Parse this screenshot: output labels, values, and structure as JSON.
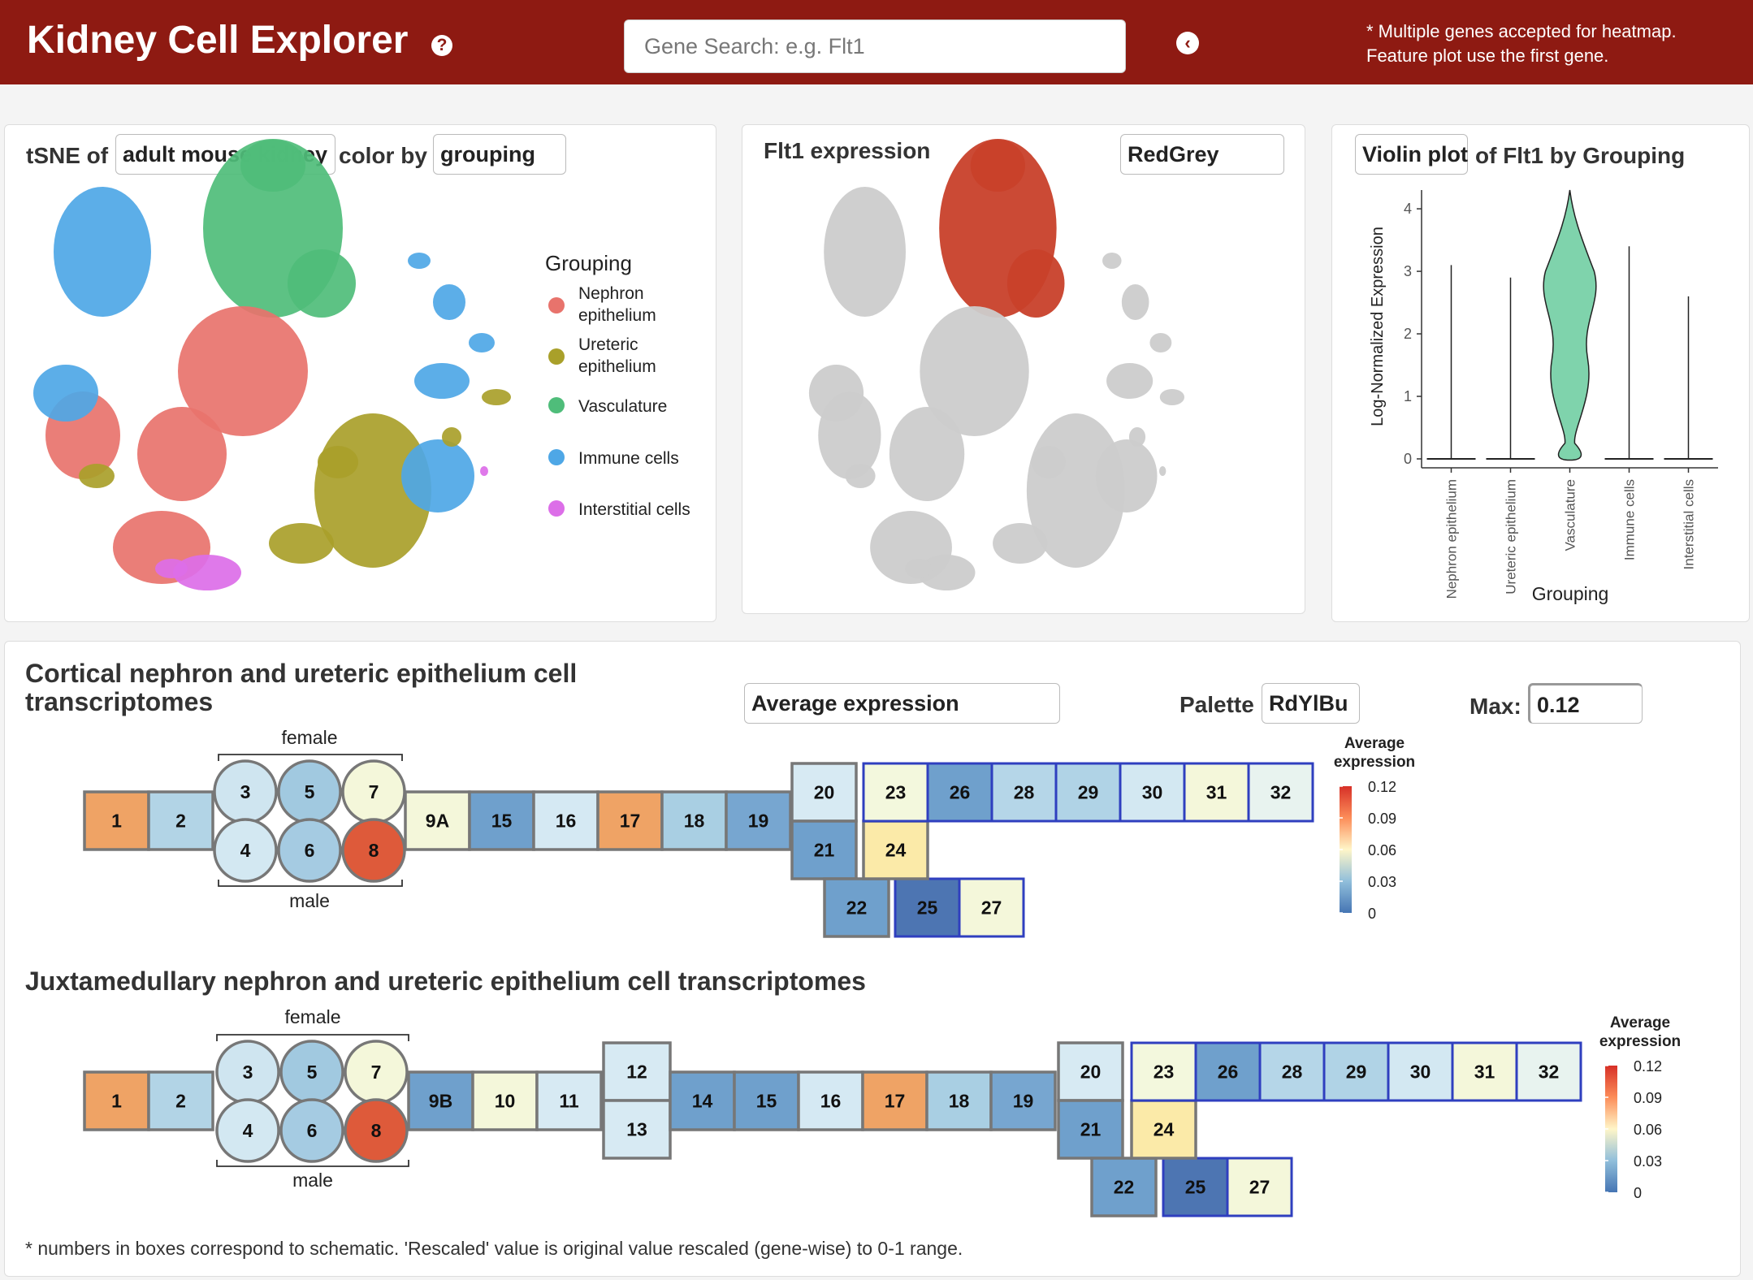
{
  "header": {
    "title": "Kidney Cell Explorer",
    "help_glyph": "?",
    "search_placeholder": "Gene Search: e.g. Flt1",
    "back_glyph": "‹",
    "note_line1": "* Multiple genes accepted for heatmap.",
    "note_line2": "Feature plot use the first gene."
  },
  "tsne_panel": {
    "label_prefix": "tSNE of",
    "dataset": "adult mouse kidney",
    "label_mid": "color by",
    "color_by": "grouping",
    "legend_title": "Grouping",
    "legend": [
      {
        "line1": "Nephron",
        "line2": "epithelium",
        "color": "#e8736c"
      },
      {
        "line1": "Ureteric",
        "line2": "epithelium",
        "color": "#a9a02a"
      },
      {
        "line1": "Vasculature",
        "line2": "",
        "color": "#4fbd7a"
      },
      {
        "line1": "Immune cells",
        "line2": "",
        "color": "#4ea7e6"
      },
      {
        "line1": "Interstitial cells",
        "line2": "",
        "color": "#dc6ee8"
      }
    ]
  },
  "feature_panel": {
    "title": "Flt1 expression",
    "palette": "RedGrey"
  },
  "violin_panel": {
    "plot_type": "Violin plot",
    "label_suffix": "of Flt1 by Grouping"
  },
  "chart_data": {
    "type": "violin",
    "title": "",
    "xlabel": "Grouping",
    "ylabel": "Log-Normalized Expression",
    "ylim": [
      0,
      4.3
    ],
    "yticks": [
      "0",
      "1",
      "2",
      "3",
      "4"
    ],
    "categories": [
      "Nephron epithelium",
      "Ureteric epithelium",
      "Vasculature",
      "Immune cells",
      "Interstitial cells"
    ],
    "max_values": [
      3.1,
      2.9,
      4.3,
      3.4,
      2.6
    ],
    "color": "#7fd3ac"
  },
  "cortical": {
    "title_line1": "Cortical nephron and ureteric epithelium cell",
    "title_line2": "transcriptomes",
    "measure": "Average expression",
    "palette_label": "Palette",
    "palette": "RdYlBu",
    "max_label": "Max:",
    "max_value": "0.12",
    "female": "female",
    "male": "male",
    "legend_title_line1": "Average",
    "legend_title_line2": "expression",
    "legend_ticks": [
      "0.12",
      "0.09",
      "0.06",
      "0.03",
      "0"
    ],
    "segments": [
      {
        "label": "1",
        "color": "#efa365"
      },
      {
        "label": "2",
        "color": "#b2d4e6"
      },
      {
        "label": "3",
        "color": "#cfe5f0"
      },
      {
        "label": "4",
        "color": "#d3e8f2"
      },
      {
        "label": "5",
        "color": "#a1c9e0"
      },
      {
        "label": "6",
        "color": "#a5cbe2"
      },
      {
        "label": "7",
        "color": "#f4f7da"
      },
      {
        "label": "8",
        "color": "#de5a3a"
      },
      {
        "label": "9A",
        "color": "#f4f7da"
      },
      {
        "label": "15",
        "color": "#6fa0cc"
      },
      {
        "label": "16",
        "color": "#d5e9f3"
      },
      {
        "label": "17",
        "color": "#efa365"
      },
      {
        "label": "18",
        "color": "#a9cfe3"
      },
      {
        "label": "19",
        "color": "#77a6d0"
      },
      {
        "label": "20",
        "color": "#d7eaf3"
      },
      {
        "label": "21",
        "color": "#6fa0cc"
      },
      {
        "label": "22",
        "color": "#6fa0cc"
      },
      {
        "label": "23",
        "color": "#f3f8dd"
      },
      {
        "label": "24",
        "color": "#fbeaa8"
      },
      {
        "label": "25",
        "color": "#4d75b2"
      },
      {
        "label": "26",
        "color": "#6fa0cc"
      },
      {
        "label": "27",
        "color": "#f4f7da"
      },
      {
        "label": "28",
        "color": "#b5d6e8"
      },
      {
        "label": "29",
        "color": "#b0d3e6"
      },
      {
        "label": "30",
        "color": "#d3e8f2"
      },
      {
        "label": "31",
        "color": "#f4f7da"
      },
      {
        "label": "32",
        "color": "#e8f3ef"
      }
    ]
  },
  "juxta": {
    "title": "Juxtamedullary nephron and ureteric epithelium cell transcriptomes",
    "female": "female",
    "male": "male",
    "legend_title_line1": "Average",
    "legend_title_line2": "expression",
    "legend_ticks": [
      "0.12",
      "0.09",
      "0.06",
      "0.03",
      "0"
    ],
    "segments": [
      {
        "label": "1",
        "color": "#efa365"
      },
      {
        "label": "2",
        "color": "#b2d4e6"
      },
      {
        "label": "3",
        "color": "#cfe5f0"
      },
      {
        "label": "4",
        "color": "#d3e8f2"
      },
      {
        "label": "5",
        "color": "#a1c9e0"
      },
      {
        "label": "6",
        "color": "#a5cbe2"
      },
      {
        "label": "7",
        "color": "#f4f7da"
      },
      {
        "label": "8",
        "color": "#de5a3a"
      },
      {
        "label": "9B",
        "color": "#6fa0cc"
      },
      {
        "label": "10",
        "color": "#f4f7da"
      },
      {
        "label": "11",
        "color": "#d7eaf3"
      },
      {
        "label": "12",
        "color": "#d7eaf3"
      },
      {
        "label": "13",
        "color": "#d7eaf3"
      },
      {
        "label": "14",
        "color": "#6fa0cc"
      },
      {
        "label": "15",
        "color": "#6fa0cc"
      },
      {
        "label": "16",
        "color": "#d5e9f3"
      },
      {
        "label": "17",
        "color": "#efa365"
      },
      {
        "label": "18",
        "color": "#a9cfe3"
      },
      {
        "label": "19",
        "color": "#77a6d0"
      },
      {
        "label": "20",
        "color": "#d7eaf3"
      },
      {
        "label": "21",
        "color": "#6fa0cc"
      },
      {
        "label": "22",
        "color": "#6fa0cc"
      },
      {
        "label": "23",
        "color": "#f3f8dd"
      },
      {
        "label": "24",
        "color": "#fbeaa8"
      },
      {
        "label": "25",
        "color": "#4d75b2"
      },
      {
        "label": "26",
        "color": "#6fa0cc"
      },
      {
        "label": "27",
        "color": "#f4f7da"
      },
      {
        "label": "28",
        "color": "#b5d6e8"
      },
      {
        "label": "29",
        "color": "#b0d3e6"
      },
      {
        "label": "30",
        "color": "#d3e8f2"
      },
      {
        "label": "31",
        "color": "#f4f7da"
      },
      {
        "label": "32",
        "color": "#e8f3ef"
      }
    ]
  },
  "footnote": "* numbers in boxes correspond to schematic. 'Rescaled' value is original value rescaled (gene-wise) to 0-1 range."
}
